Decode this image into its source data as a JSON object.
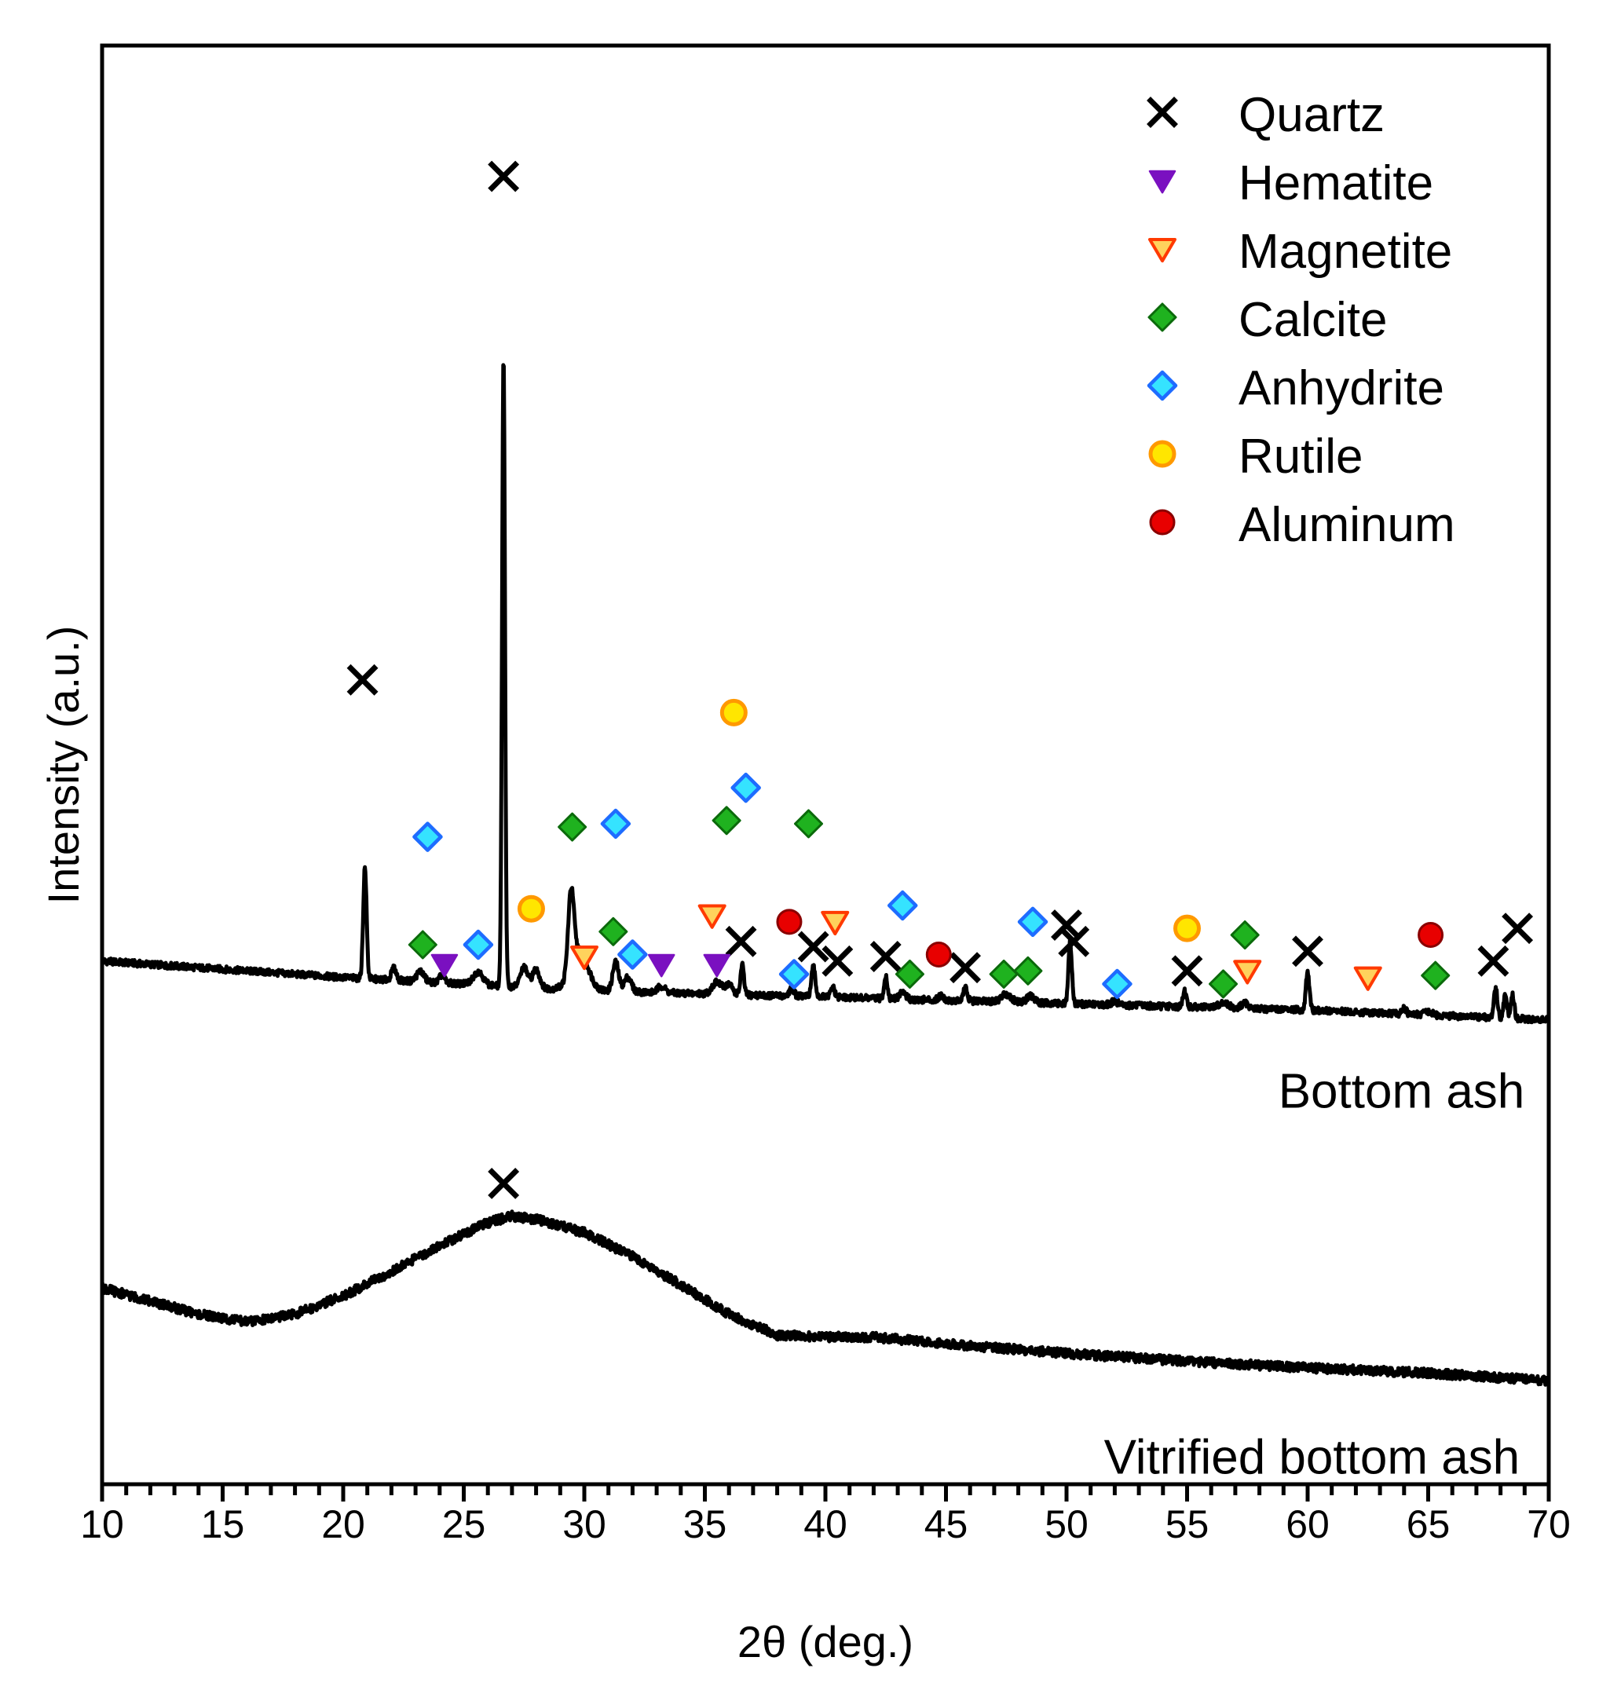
{
  "chart_data": {
    "type": "line",
    "title": "",
    "xlabel": "2θ (deg.)",
    "ylabel": "Intensity (a.u.)",
    "xlim": [
      10,
      70
    ],
    "xticks": [
      "10",
      "15",
      "20",
      "25",
      "30",
      "35",
      "40",
      "45",
      "50",
      "55",
      "60",
      "65",
      "70"
    ],
    "grid": false,
    "legend_position": "top-right",
    "legend": [
      {
        "name": "Quartz",
        "marker": "x",
        "color": "#000000"
      },
      {
        "name": "Hematite",
        "marker": "triangle-down",
        "color": "#7a10c0"
      },
      {
        "name": "Magnetite",
        "marker": "triangle-down-hollow",
        "color": "#ff3a00"
      },
      {
        "name": "Calcite",
        "marker": "diamond",
        "color": "#1fb21f"
      },
      {
        "name": "Anhydrite",
        "marker": "diamond-hollow",
        "color": "#1e6cff"
      },
      {
        "name": "Rutile",
        "marker": "circle-hollow",
        "color": "#ff9900"
      },
      {
        "name": "Aluminum",
        "marker": "circle",
        "color": "#e80000"
      }
    ],
    "series": [
      {
        "name": "Bottom ash",
        "baseline": [
          [
            10,
            8.0
          ],
          [
            20,
            7.75
          ],
          [
            30,
            7.55
          ],
          [
            40,
            7.45
          ],
          [
            50,
            7.35
          ],
          [
            60,
            7.25
          ],
          [
            70,
            7.1
          ]
        ],
        "peaks": [
          {
            "x": 20.9,
            "h": 1.7,
            "w": 0.07
          },
          {
            "x": 22.1,
            "h": 0.18,
            "w": 0.1
          },
          {
            "x": 23.2,
            "h": 0.16,
            "w": 0.15
          },
          {
            "x": 24.1,
            "h": 0.12,
            "w": 0.1
          },
          {
            "x": 25.6,
            "h": 0.2,
            "w": 0.2
          },
          {
            "x": 26.65,
            "h": 9.6,
            "w": 0.06
          },
          {
            "x": 27.5,
            "h": 0.3,
            "w": 0.15
          },
          {
            "x": 28.0,
            "h": 0.28,
            "w": 0.15
          },
          {
            "x": 29.45,
            "h": 1.2,
            "w": 0.12
          },
          {
            "x": 29.8,
            "h": 0.6,
            "w": 0.35
          },
          {
            "x": 31.3,
            "h": 0.45,
            "w": 0.12
          },
          {
            "x": 31.8,
            "h": 0.22,
            "w": 0.15
          },
          {
            "x": 33.2,
            "h": 0.1,
            "w": 0.15
          },
          {
            "x": 35.5,
            "h": 0.18,
            "w": 0.2
          },
          {
            "x": 36.0,
            "h": 0.15,
            "w": 0.15
          },
          {
            "x": 36.55,
            "h": 0.45,
            "w": 0.07
          },
          {
            "x": 38.6,
            "h": 0.12,
            "w": 0.1
          },
          {
            "x": 39.5,
            "h": 0.45,
            "w": 0.08
          },
          {
            "x": 40.3,
            "h": 0.15,
            "w": 0.08
          },
          {
            "x": 42.5,
            "h": 0.35,
            "w": 0.07
          },
          {
            "x": 43.2,
            "h": 0.12,
            "w": 0.12
          },
          {
            "x": 44.8,
            "h": 0.08,
            "w": 0.1
          },
          {
            "x": 45.8,
            "h": 0.2,
            "w": 0.08
          },
          {
            "x": 47.5,
            "h": 0.12,
            "w": 0.2
          },
          {
            "x": 48.5,
            "h": 0.1,
            "w": 0.15
          },
          {
            "x": 50.15,
            "h": 0.95,
            "w": 0.07
          },
          {
            "x": 52.0,
            "h": 0.05,
            "w": 0.15
          },
          {
            "x": 54.9,
            "h": 0.25,
            "w": 0.07
          },
          {
            "x": 56.5,
            "h": 0.08,
            "w": 0.2
          },
          {
            "x": 57.4,
            "h": 0.08,
            "w": 0.15
          },
          {
            "x": 60.0,
            "h": 0.6,
            "w": 0.07
          },
          {
            "x": 64.0,
            "h": 0.1,
            "w": 0.08
          },
          {
            "x": 65.0,
            "h": 0.06,
            "w": 0.15
          },
          {
            "x": 67.8,
            "h": 0.45,
            "w": 0.07
          },
          {
            "x": 68.2,
            "h": 0.35,
            "w": 0.07
          },
          {
            "x": 68.5,
            "h": 0.35,
            "w": 0.07
          }
        ]
      },
      {
        "name": "Vitrified bottom ash",
        "points": [
          [
            10,
            3.0
          ],
          [
            12,
            2.8
          ],
          [
            14,
            2.6
          ],
          [
            16,
            2.48
          ],
          [
            18,
            2.6
          ],
          [
            20,
            2.88
          ],
          [
            22,
            3.25
          ],
          [
            24,
            3.65
          ],
          [
            26,
            4.0
          ],
          [
            27,
            4.1
          ],
          [
            28,
            4.05
          ],
          [
            30,
            3.85
          ],
          [
            32,
            3.48
          ],
          [
            34,
            3.05
          ],
          [
            36,
            2.6
          ],
          [
            38,
            2.28
          ],
          [
            40,
            2.25
          ],
          [
            42,
            2.25
          ],
          [
            45,
            2.15
          ],
          [
            50,
            2.0
          ],
          [
            55,
            1.88
          ],
          [
            60,
            1.78
          ],
          [
            65,
            1.7
          ],
          [
            70,
            1.58
          ]
        ]
      }
    ],
    "markers": {
      "Quartz": [
        [
          20.8,
          12.3
        ],
        [
          26.65,
          20.0
        ],
        [
          26.65,
          4.6
        ],
        [
          36.5,
          8.3
        ],
        [
          39.5,
          8.22
        ],
        [
          40.5,
          8.0
        ],
        [
          42.5,
          8.07
        ],
        [
          45.8,
          7.9
        ],
        [
          50.0,
          8.55
        ],
        [
          50.3,
          8.3
        ],
        [
          55.0,
          7.85
        ],
        [
          60.0,
          8.15
        ],
        [
          67.7,
          8.0
        ],
        [
          68.7,
          8.5
        ]
      ],
      "Hematite": [
        [
          24.2,
          7.95
        ],
        [
          33.2,
          7.95
        ],
        [
          35.5,
          7.95
        ]
      ],
      "Magnetite": [
        [
          30.0,
          8.07
        ],
        [
          35.3,
          8.7
        ],
        [
          40.4,
          8.6
        ],
        [
          57.5,
          7.85
        ],
        [
          62.5,
          7.75
        ]
      ],
      "Calcite": [
        [
          23.3,
          8.25
        ],
        [
          29.5,
          10.05
        ],
        [
          31.2,
          8.45
        ],
        [
          35.9,
          10.15
        ],
        [
          39.3,
          10.1
        ],
        [
          43.5,
          7.8
        ],
        [
          47.4,
          7.8
        ],
        [
          48.4,
          7.85
        ],
        [
          56.5,
          7.65
        ],
        [
          57.4,
          8.4
        ],
        [
          65.3,
          7.78
        ]
      ],
      "Anhydrite": [
        [
          23.5,
          9.9
        ],
        [
          25.6,
          8.25
        ],
        [
          31.3,
          10.1
        ],
        [
          32.0,
          8.1
        ],
        [
          36.7,
          10.65
        ],
        [
          38.7,
          7.8
        ],
        [
          43.2,
          8.85
        ],
        [
          48.6,
          8.6
        ],
        [
          52.1,
          7.65
        ]
      ],
      "Rutile": [
        [
          27.8,
          8.8
        ],
        [
          36.2,
          11.8
        ],
        [
          55.0,
          8.5
        ]
      ],
      "Aluminum": [
        [
          38.5,
          8.6
        ],
        [
          44.7,
          8.1
        ],
        [
          65.1,
          8.4
        ]
      ]
    },
    "annotations": [
      {
        "text": "Bottom ash",
        "x": 69.0,
        "y": 6.0
      },
      {
        "text": "Vitrified bottom ash",
        "x": 68.8,
        "y": 0.4
      }
    ]
  }
}
